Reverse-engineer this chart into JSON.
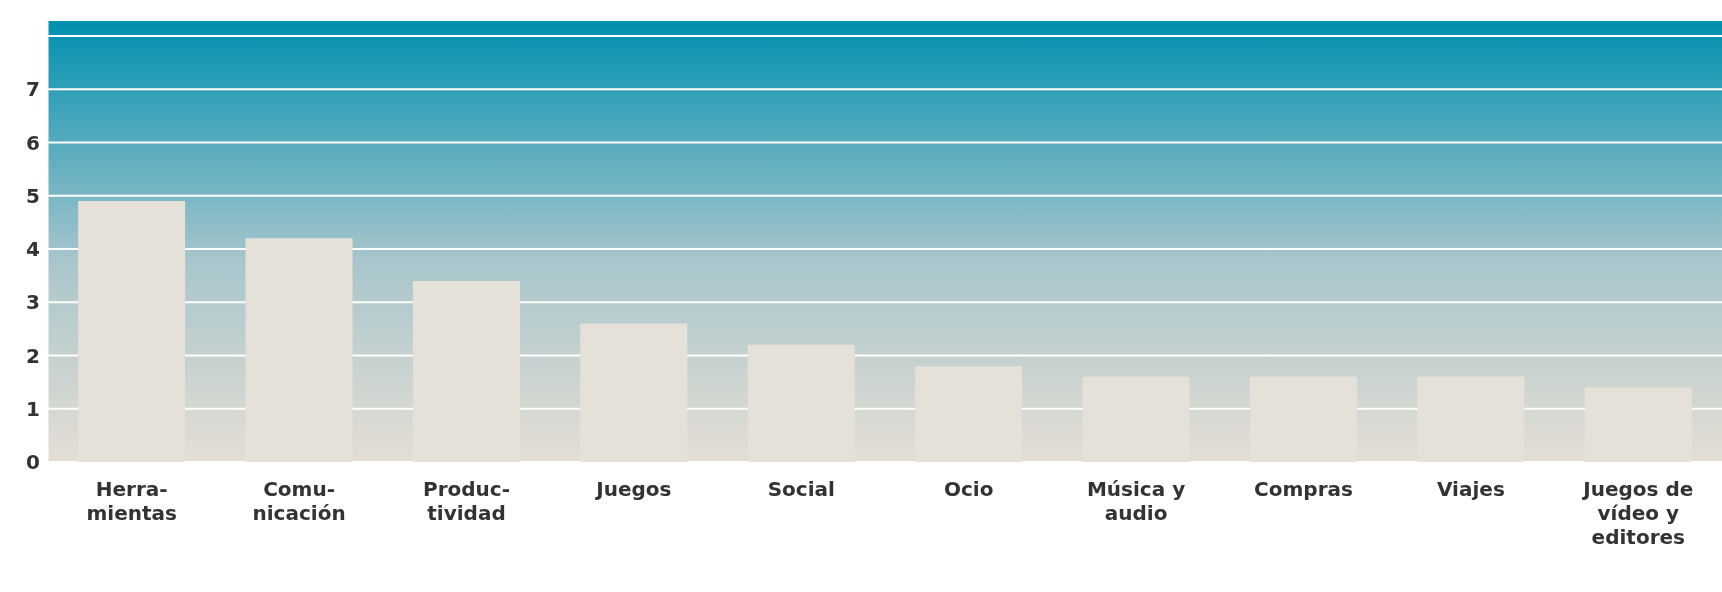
{
  "chart_data": {
    "type": "bar",
    "categories": [
      "Herra-\nmientas",
      "Comu-\nnicación",
      "Produc-\ntividad",
      "Juegos",
      "Social",
      "Ocio",
      "Música y\naudio",
      "Compras",
      "Viajes",
      "Juegos de\nvídeo y\neditores"
    ],
    "values": [
      4.9,
      4.2,
      3.4,
      2.6,
      2.2,
      1.8,
      1.6,
      1.6,
      1.6,
      1.4
    ],
    "color": "#e6e1d8",
    "ylim": [
      0,
      8.3
    ],
    "yticks": [
      0,
      1,
      2,
      3,
      4,
      5,
      6,
      7,
      {
        "value": 8,
        "label": null
      }
    ],
    "grid": "y",
    "legend": false
  }
}
